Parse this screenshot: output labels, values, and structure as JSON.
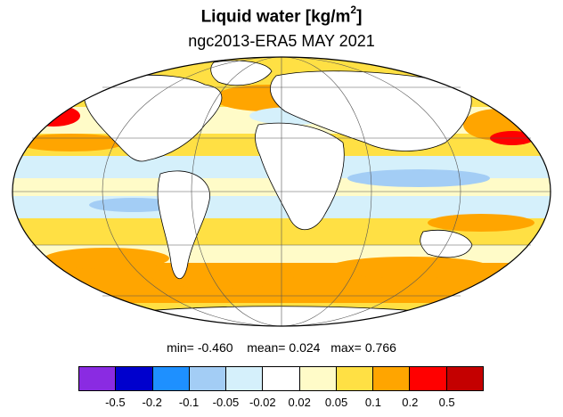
{
  "header": {
    "title": "Liquid water  [kg/m",
    "title_sup": "2",
    "title_end": "]",
    "subtitle": "ngc2013-ERA5 MAY 2021"
  },
  "stats": {
    "min_label": "min=",
    "min_value": "-0.460",
    "mean_label": "mean=",
    "mean_value": "0.024",
    "max_label": "max=",
    "max_value": "0.766"
  },
  "colorbar": {
    "colors": [
      "#8a2be2",
      "#0000cd",
      "#1e90ff",
      "#a3cdf5",
      "#d5f0fb",
      "#ffffff",
      "#fffbc8",
      "#ffe044",
      "#ffa500",
      "#ff0000",
      "#c40000"
    ],
    "labels": [
      "-0.5",
      "-0.2",
      "-0.1",
      "-0.05",
      "-0.02",
      "0.02",
      "0.05",
      "0.1",
      "0.2",
      "0.5"
    ]
  },
  "map": {
    "projection": "mollweide",
    "ocean_colors": {
      "strong_pos": "#ffa500",
      "pos": "#ffe044",
      "weak_pos": "#fffbc8",
      "weak_neg": "#d5f0fb",
      "neg": "#a3cdf5",
      "land": "#ffffff",
      "hot": "#ff0000"
    }
  }
}
